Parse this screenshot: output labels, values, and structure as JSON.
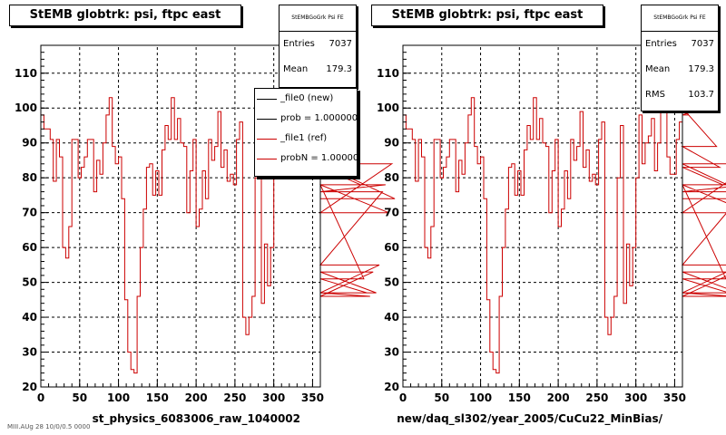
{
  "chart_data": [
    {
      "type": "line",
      "title": "StEMB globtrk: psi, ftpc east",
      "xlabel": "st_physics_6083006_raw_1040002",
      "ylabel": "",
      "xlim": [
        0,
        360
      ],
      "ylim": [
        20,
        118
      ],
      "xticks": [
        0,
        50,
        100,
        150,
        200,
        250,
        300,
        350
      ],
      "yticks": [
        20,
        30,
        40,
        50,
        60,
        70,
        80,
        90,
        100,
        110
      ],
      "grid": true,
      "stats": {
        "name": "StEMBGoGrk Psi FE",
        "entries_label": "Entries",
        "entries": "7037",
        "mean_label": "Mean",
        "mean": "179.3"
      },
      "legend": {
        "placement": "top-right",
        "entries": [
          {
            "label": "_file0 (new)",
            "color": "#000000"
          },
          {
            "label": "prob = 1.000000",
            "color": "#000000"
          },
          {
            "label": "_file1 (ref)",
            "color": "#cc0000"
          },
          {
            "label": "probN = 1.000000",
            "color": "#cc0000"
          }
        ]
      },
      "series": [
        {
          "color": "#cc0000",
          "bin_width": 4,
          "values": [
            98,
            94,
            94,
            91,
            79,
            91,
            86,
            60,
            57,
            66,
            91,
            91,
            80,
            83,
            86,
            91,
            91,
            76,
            85,
            81,
            90,
            98,
            103,
            89,
            84,
            86,
            74,
            45,
            30,
            25,
            24,
            46,
            60,
            71,
            83,
            84,
            75,
            82,
            75,
            88,
            95,
            91,
            103,
            91,
            97,
            90,
            89,
            70,
            82,
            91,
            66,
            71,
            82,
            74,
            91,
            85,
            89,
            99,
            83,
            88,
            79,
            81,
            78,
            91,
            96,
            40,
            35,
            40,
            46,
            80,
            95,
            44,
            61,
            49,
            60,
            80,
            98,
            84,
            90,
            92,
            97,
            82,
            90,
            103,
            102,
            86,
            81,
            81,
            91,
            96,
            104,
            102,
            98,
            99,
            110,
            108,
            113,
            107,
            111,
            104,
            100,
            89,
            83,
            78,
            51,
            47,
            46,
            53,
            47,
            55,
            76,
            78,
            70,
            84,
            74
          ]
        }
      ]
    },
    {
      "type": "line",
      "title": "StEMB globtrk: psi, ftpc east",
      "xlabel": "new/daq_sl302/year_2005/CuCu22_MinBias/",
      "ylabel": "",
      "xlim": [
        0,
        360
      ],
      "ylim": [
        20,
        118
      ],
      "xticks": [
        0,
        50,
        100,
        150,
        200,
        250,
        300,
        350
      ],
      "yticks": [
        20,
        30,
        40,
        50,
        60,
        70,
        80,
        90,
        100,
        110
      ],
      "grid": true,
      "stats": {
        "name": "StEMBGoGrk Psi FE",
        "entries_label": "Entries",
        "entries": "7037",
        "mean_label": "Mean",
        "mean": "179.3",
        "rms_label": "RMS",
        "rms": "103.7"
      },
      "series": [
        {
          "color": "#cc0000",
          "bin_width": 4,
          "values": [
            98,
            94,
            94,
            91,
            79,
            91,
            86,
            60,
            57,
            66,
            91,
            91,
            80,
            83,
            86,
            91,
            91,
            76,
            85,
            81,
            90,
            98,
            103,
            89,
            84,
            86,
            74,
            45,
            30,
            25,
            24,
            46,
            60,
            71,
            83,
            84,
            75,
            82,
            75,
            88,
            95,
            91,
            103,
            91,
            97,
            90,
            89,
            70,
            82,
            91,
            66,
            71,
            82,
            74,
            91,
            85,
            89,
            99,
            83,
            88,
            79,
            81,
            78,
            91,
            96,
            40,
            35,
            40,
            46,
            80,
            95,
            44,
            61,
            49,
            60,
            80,
            98,
            84,
            90,
            92,
            97,
            82,
            90,
            103,
            102,
            86,
            81,
            81,
            91,
            96,
            104,
            102,
            98,
            99,
            110,
            108,
            113,
            107,
            111,
            104,
            100,
            89,
            83,
            78,
            51,
            47,
            46,
            53,
            47,
            55,
            76,
            78,
            70,
            84,
            74
          ]
        }
      ]
    }
  ],
  "footer": "MIII.AUg 28 10/0/0.5 0000"
}
